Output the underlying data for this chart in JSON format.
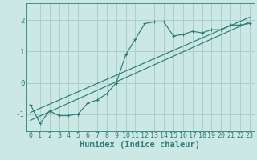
{
  "title": "",
  "xlabel": "Humidex (Indice chaleur)",
  "ylabel": "",
  "bg_color": "#cce8e5",
  "line_color": "#2d7d78",
  "grid_color": "#aacfcc",
  "xlim": [
    -0.5,
    23.5
  ],
  "ylim": [
    -1.55,
    2.55
  ],
  "yticks": [
    -1,
    0,
    1,
    2
  ],
  "xticks": [
    0,
    1,
    2,
    3,
    4,
    5,
    6,
    7,
    8,
    9,
    10,
    11,
    12,
    13,
    14,
    15,
    16,
    17,
    18,
    19,
    20,
    21,
    22,
    23
  ],
  "main_x": [
    0,
    1,
    2,
    3,
    4,
    5,
    6,
    7,
    8,
    9,
    10,
    11,
    12,
    13,
    14,
    15,
    16,
    17,
    18,
    19,
    20,
    21,
    22,
    23
  ],
  "main_y": [
    -0.7,
    -1.3,
    -0.9,
    -1.05,
    -1.05,
    -1.0,
    -0.65,
    -0.55,
    -0.35,
    -0.0,
    0.9,
    1.4,
    1.9,
    1.95,
    1.95,
    1.5,
    1.55,
    1.65,
    1.6,
    1.7,
    1.7,
    1.85,
    1.85,
    1.9
  ],
  "line2_x": [
    0,
    23
  ],
  "line2_y": [
    -1.2,
    1.95
  ],
  "line3_x": [
    0,
    23
  ],
  "line3_y": [
    -0.95,
    2.1
  ],
  "figsize": [
    3.2,
    2.0
  ],
  "dpi": 100,
  "tick_fontsize": 6,
  "xlabel_fontsize": 7.5
}
